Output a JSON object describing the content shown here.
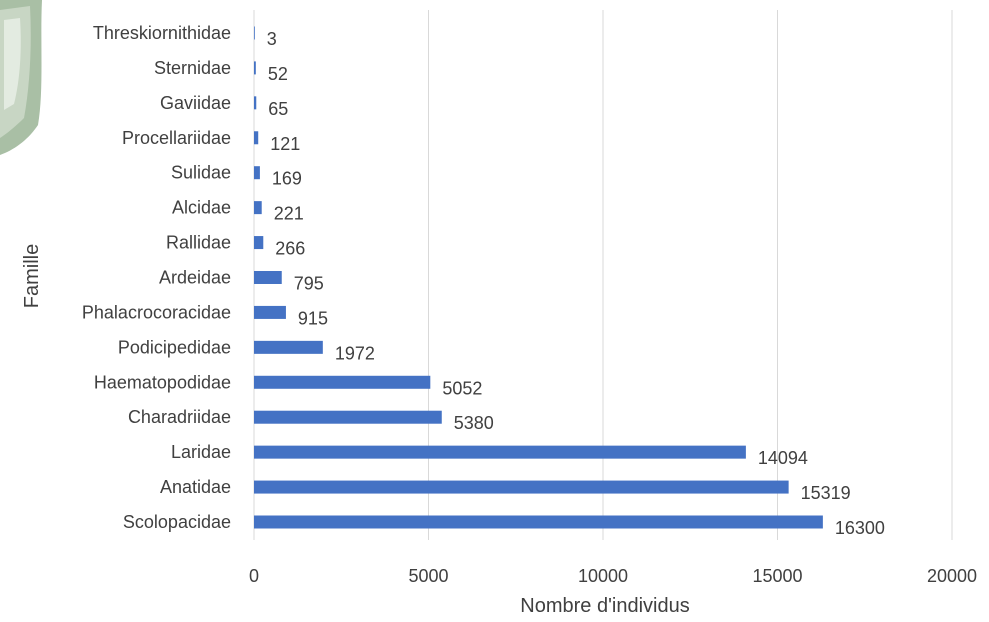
{
  "chart_data": {
    "type": "bar",
    "orientation": "horizontal",
    "categories": [
      "Scolopacidae",
      "Anatidae",
      "Laridae",
      "Charadriidae",
      "Haematopodidae",
      "Podicipedidae",
      "Phalacrocoracidae",
      "Ardeidae",
      "Rallidae",
      "Alcidae",
      "Sulidae",
      "Procellariidae",
      "Gaviidae",
      "Sternidae",
      "Threskiornithidae"
    ],
    "values": [
      16300,
      15319,
      14094,
      5380,
      5052,
      1972,
      915,
      795,
      266,
      221,
      169,
      121,
      65,
      52,
      3
    ],
    "xlabel": "Nombre d'individus",
    "ylabel": "Famille",
    "xlim": [
      0,
      20000
    ],
    "xticks": [
      0,
      5000,
      10000,
      15000,
      20000
    ],
    "grid": true,
    "data_labels": true,
    "bar_color": "#4472c4",
    "legend": "none"
  }
}
